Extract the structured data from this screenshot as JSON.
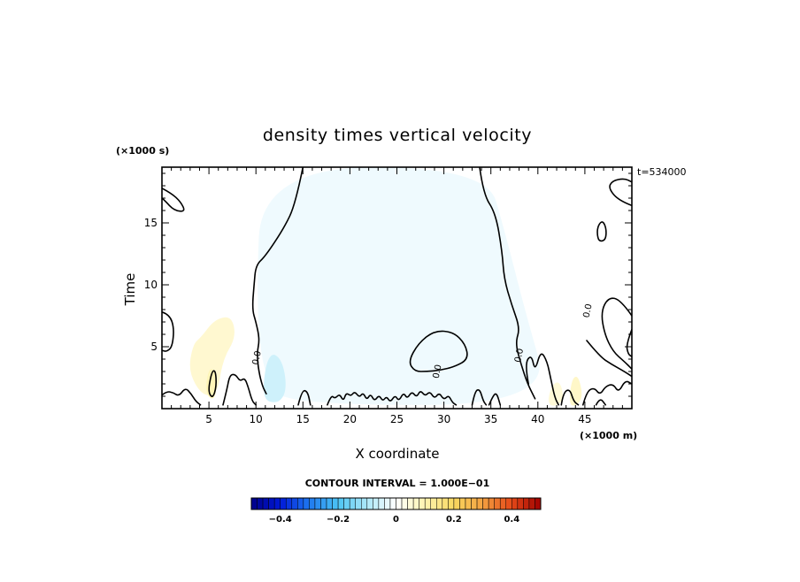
{
  "chart_data": {
    "type": "heatmap",
    "title": "density times vertical velocity",
    "xlabel": "X coordinate",
    "ylabel": "Time",
    "x_unit": "(×1000 m)",
    "y_unit": "(×1000 s)",
    "time_annotation": "t=534000",
    "xlim": [
      0,
      50
    ],
    "ylim": [
      0,
      19.5
    ],
    "x_ticks": [
      5,
      10,
      15,
      20,
      25,
      30,
      35,
      40,
      45
    ],
    "y_ticks": [
      5,
      10,
      15
    ],
    "contour_interval_label": "CONTOUR INTERVAL = 1.000E−01",
    "contour_interval": 0.1,
    "contour_labels": [
      {
        "text": "0.0",
        "x": 10.1,
        "y": 4.1
      },
      {
        "text": "0.0",
        "x": 29.3,
        "y": 3.0
      },
      {
        "text": "0.0",
        "x": 38.0,
        "y": 4.3
      },
      {
        "text": "0.0",
        "x": 45.3,
        "y": 7.9
      }
    ],
    "colorbar": {
      "range": [
        -0.5,
        0.5
      ],
      "tick_labels": [
        "−0.4",
        "−0.2",
        "0",
        "0.2",
        "0.4"
      ],
      "tick_values": [
        -0.4,
        -0.2,
        0,
        0.2,
        0.4
      ],
      "stops": [
        {
          "v": -0.5,
          "c": "#000088"
        },
        {
          "v": -0.4,
          "c": "#0018d8"
        },
        {
          "v": -0.3,
          "c": "#1e78f0"
        },
        {
          "v": -0.2,
          "c": "#4cc4f4"
        },
        {
          "v": -0.1,
          "c": "#aee8f8"
        },
        {
          "v": 0.0,
          "c": "#ffffff"
        },
        {
          "v": 0.1,
          "c": "#fff4b0"
        },
        {
          "v": 0.2,
          "c": "#f8d860"
        },
        {
          "v": 0.3,
          "c": "#f4a040"
        },
        {
          "v": 0.4,
          "c": "#e44818"
        },
        {
          "v": 0.5,
          "c": "#a00000"
        }
      ]
    },
    "field_regions": [
      {
        "kind": "negative",
        "value": -0.02,
        "points": [
          [
            10.6,
            19.5
          ],
          [
            34.5,
            19.5
          ],
          [
            36.6,
            14.0
          ],
          [
            38.6,
            8.0
          ],
          [
            41.5,
            0.3
          ],
          [
            14.0,
            0.3
          ],
          [
            11.0,
            2.0
          ],
          [
            10.0,
            8.0
          ]
        ]
      },
      {
        "kind": "positive",
        "value": 0.06,
        "points": [
          [
            2.8,
            3.0
          ],
          [
            3.3,
            5.2
          ],
          [
            4.2,
            5.8
          ],
          [
            5.6,
            7.2
          ],
          [
            7.4,
            7.5
          ],
          [
            7.9,
            5.8
          ],
          [
            6.5,
            4.0
          ],
          [
            5.9,
            1.2
          ],
          [
            4.3,
            1.0
          ]
        ]
      },
      {
        "kind": "positive",
        "value": 0.09,
        "points": [
          [
            4.6,
            1.2
          ],
          [
            4.9,
            3.0
          ],
          [
            5.4,
            3.3
          ],
          [
            5.9,
            2.4
          ],
          [
            5.6,
            0.6
          ]
        ]
      },
      {
        "kind": "negative",
        "value": -0.06,
        "points": [
          [
            10.7,
            0.7
          ],
          [
            11.0,
            3.5
          ],
          [
            11.8,
            4.6
          ],
          [
            12.9,
            3.7
          ],
          [
            13.3,
            1.5
          ],
          [
            12.4,
            0.4
          ]
        ]
      },
      {
        "kind": "positive",
        "value": 0.05,
        "points": [
          [
            41.0,
            0.3
          ],
          [
            41.4,
            1.8
          ],
          [
            42.3,
            2.3
          ],
          [
            42.8,
            0.9
          ],
          [
            42.1,
            0.2
          ]
        ]
      },
      {
        "kind": "positive",
        "value": 0.07,
        "points": [
          [
            43.3,
            0.3
          ],
          [
            43.6,
            2.4
          ],
          [
            44.3,
            2.7
          ],
          [
            44.8,
            1.0
          ],
          [
            44.1,
            0.2
          ]
        ]
      }
    ],
    "contours": [
      {
        "closed": false,
        "points": [
          [
            15.0,
            19.5
          ],
          [
            14.2,
            16.5
          ],
          [
            13.0,
            14.6
          ],
          [
            11.0,
            12.3
          ],
          [
            10.0,
            11.6
          ],
          [
            9.8,
            10.0
          ],
          [
            9.6,
            8.0
          ],
          [
            10.0,
            7.0
          ],
          [
            10.4,
            5.6
          ],
          [
            10.1,
            4.5
          ],
          [
            10.3,
            3.0
          ],
          [
            10.7,
            1.8
          ],
          [
            11.1,
            1.2
          ]
        ]
      },
      {
        "closed": false,
        "points": [
          [
            33.8,
            19.5
          ],
          [
            34.2,
            17.3
          ],
          [
            35.5,
            15.8
          ],
          [
            36.2,
            12.7
          ],
          [
            36.4,
            10.5
          ],
          [
            37.2,
            8.4
          ],
          [
            38.1,
            6.5
          ],
          [
            37.6,
            5.3
          ],
          [
            38.2,
            3.6
          ],
          [
            38.9,
            2.0
          ],
          [
            39.7,
            0.8
          ]
        ]
      },
      {
        "closed": false,
        "points": [
          [
            0.0,
            17.8
          ],
          [
            1.0,
            17.4
          ],
          [
            2.0,
            16.7
          ],
          [
            2.5,
            15.9
          ],
          [
            1.3,
            16.0
          ],
          [
            0.3,
            16.8
          ],
          [
            0.0,
            17.0
          ]
        ]
      },
      {
        "closed": false,
        "points": [
          [
            50.0,
            16.4
          ],
          [
            48.6,
            16.8
          ],
          [
            47.5,
            17.8
          ],
          [
            47.9,
            18.4
          ],
          [
            49.2,
            18.6
          ],
          [
            50.0,
            18.3
          ]
        ]
      },
      {
        "closed": true,
        "points": [
          [
            46.4,
            14.8
          ],
          [
            46.9,
            15.2
          ],
          [
            47.3,
            14.5
          ],
          [
            47.2,
            13.6
          ],
          [
            46.5,
            13.5
          ],
          [
            46.3,
            14.1
          ]
        ]
      },
      {
        "closed": true,
        "points": [
          [
            26.2,
            3.8
          ],
          [
            27.3,
            5.3
          ],
          [
            29.0,
            6.3
          ],
          [
            31.0,
            6.2
          ],
          [
            32.3,
            5.2
          ],
          [
            32.6,
            4.0
          ],
          [
            31.2,
            3.4
          ],
          [
            29.6,
            3.1
          ],
          [
            28.2,
            3.0
          ],
          [
            26.9,
            3.0
          ]
        ]
      },
      {
        "closed": false,
        "points": [
          [
            50.0,
            7.5
          ],
          [
            48.8,
            8.8
          ],
          [
            47.5,
            9.0
          ],
          [
            46.7,
            7.8
          ],
          [
            47.1,
            6.0
          ],
          [
            48.0,
            4.6
          ],
          [
            49.2,
            3.8
          ],
          [
            50.0,
            3.2
          ]
        ]
      },
      {
        "closed": false,
        "points": [
          [
            50.0,
            6.4
          ],
          [
            49.4,
            5.2
          ],
          [
            49.6,
            4.4
          ],
          [
            50.0,
            4.2
          ]
        ]
      },
      {
        "closed": false,
        "points": [
          [
            45.2,
            5.5
          ],
          [
            46.6,
            4.2
          ],
          [
            47.8,
            3.6
          ],
          [
            49.2,
            3.0
          ],
          [
            50.0,
            2.6
          ]
        ]
      },
      {
        "closed": false,
        "points": [
          [
            0.0,
            7.8
          ],
          [
            0.8,
            7.6
          ],
          [
            1.3,
            6.5
          ],
          [
            1.1,
            5.0
          ],
          [
            0.5,
            4.6
          ],
          [
            0.0,
            4.7
          ]
        ]
      },
      {
        "closed": false,
        "points": [
          [
            0.0,
            1.1
          ],
          [
            0.5,
            1.4
          ],
          [
            1.2,
            1.3
          ],
          [
            1.8,
            1.0
          ],
          [
            2.5,
            1.7
          ],
          [
            3.1,
            1.2
          ],
          [
            3.6,
            0.6
          ],
          [
            4.1,
            0.3
          ]
        ]
      },
      {
        "closed": true,
        "points": [
          [
            4.9,
            1.4
          ],
          [
            5.3,
            3.0
          ],
          [
            5.7,
            3.1
          ],
          [
            5.8,
            1.8
          ],
          [
            5.4,
            0.8
          ]
        ]
      },
      {
        "closed": false,
        "points": [
          [
            6.5,
            0.3
          ],
          [
            6.9,
            1.5
          ],
          [
            7.2,
            2.7
          ],
          [
            7.8,
            2.8
          ],
          [
            8.3,
            2.2
          ],
          [
            8.8,
            2.5
          ],
          [
            9.2,
            1.7
          ],
          [
            9.6,
            0.6
          ],
          [
            10.0,
            0.3
          ]
        ]
      },
      {
        "closed": false,
        "points": [
          [
            14.5,
            0.3
          ],
          [
            14.9,
            1.5
          ],
          [
            15.5,
            1.4
          ],
          [
            15.8,
            0.3
          ]
        ]
      },
      {
        "closed": false,
        "points": [
          [
            17.6,
            0.3
          ],
          [
            18.0,
            1.1
          ],
          [
            18.4,
            0.8
          ],
          [
            18.9,
            1.2
          ],
          [
            19.3,
            0.6
          ],
          [
            19.6,
            1.3
          ],
          [
            20.1,
            1.0
          ],
          [
            20.5,
            1.4
          ],
          [
            21.0,
            0.9
          ],
          [
            21.4,
            1.3
          ],
          [
            21.8,
            0.7
          ],
          [
            22.2,
            1.2
          ],
          [
            22.6,
            0.6
          ],
          [
            23.1,
            1.1
          ],
          [
            23.5,
            0.6
          ],
          [
            23.9,
            1.0
          ],
          [
            24.3,
            0.5
          ],
          [
            24.8,
            1.1
          ],
          [
            25.2,
            0.6
          ],
          [
            25.7,
            1.3
          ],
          [
            26.1,
            0.8
          ],
          [
            26.6,
            1.4
          ],
          [
            27.1,
            0.9
          ],
          [
            27.5,
            1.5
          ],
          [
            28.0,
            1.0
          ],
          [
            28.5,
            1.4
          ],
          [
            29.0,
            0.8
          ],
          [
            29.5,
            1.3
          ],
          [
            30.0,
            0.7
          ],
          [
            30.5,
            1.1
          ],
          [
            30.9,
            0.5
          ],
          [
            31.3,
            0.3
          ]
        ]
      },
      {
        "closed": false,
        "points": [
          [
            33.0,
            0.3
          ],
          [
            33.3,
            1.4
          ],
          [
            33.8,
            1.6
          ],
          [
            34.2,
            0.6
          ],
          [
            34.5,
            0.3
          ]
        ]
      },
      {
        "closed": false,
        "points": [
          [
            34.8,
            0.3
          ],
          [
            35.2,
            1.0
          ],
          [
            35.6,
            1.3
          ],
          [
            36.0,
            0.3
          ]
        ]
      },
      {
        "closed": false,
        "points": [
          [
            39.0,
            2.0
          ],
          [
            38.6,
            3.6
          ],
          [
            39.3,
            4.4
          ],
          [
            39.7,
            3.0
          ],
          [
            40.3,
            4.7
          ],
          [
            41.0,
            3.8
          ],
          [
            41.4,
            2.3
          ],
          [
            41.8,
            0.9
          ],
          [
            42.2,
            0.3
          ]
        ]
      },
      {
        "closed": false,
        "points": [
          [
            42.5,
            0.3
          ],
          [
            42.7,
            1.3
          ],
          [
            43.4,
            1.6
          ],
          [
            43.8,
            0.6
          ],
          [
            44.3,
            0.3
          ]
        ]
      },
      {
        "closed": false,
        "points": [
          [
            44.8,
            0.3
          ],
          [
            45.2,
            1.4
          ],
          [
            46.0,
            1.7
          ],
          [
            46.6,
            1.1
          ],
          [
            47.2,
            1.8
          ],
          [
            48.0,
            2.0
          ],
          [
            48.6,
            1.3
          ],
          [
            49.3,
            2.3
          ],
          [
            50.0,
            2.0
          ]
        ]
      },
      {
        "closed": false,
        "points": [
          [
            46.2,
            0.3
          ],
          [
            46.6,
            0.9
          ],
          [
            47.2,
            0.3
          ]
        ]
      }
    ]
  }
}
